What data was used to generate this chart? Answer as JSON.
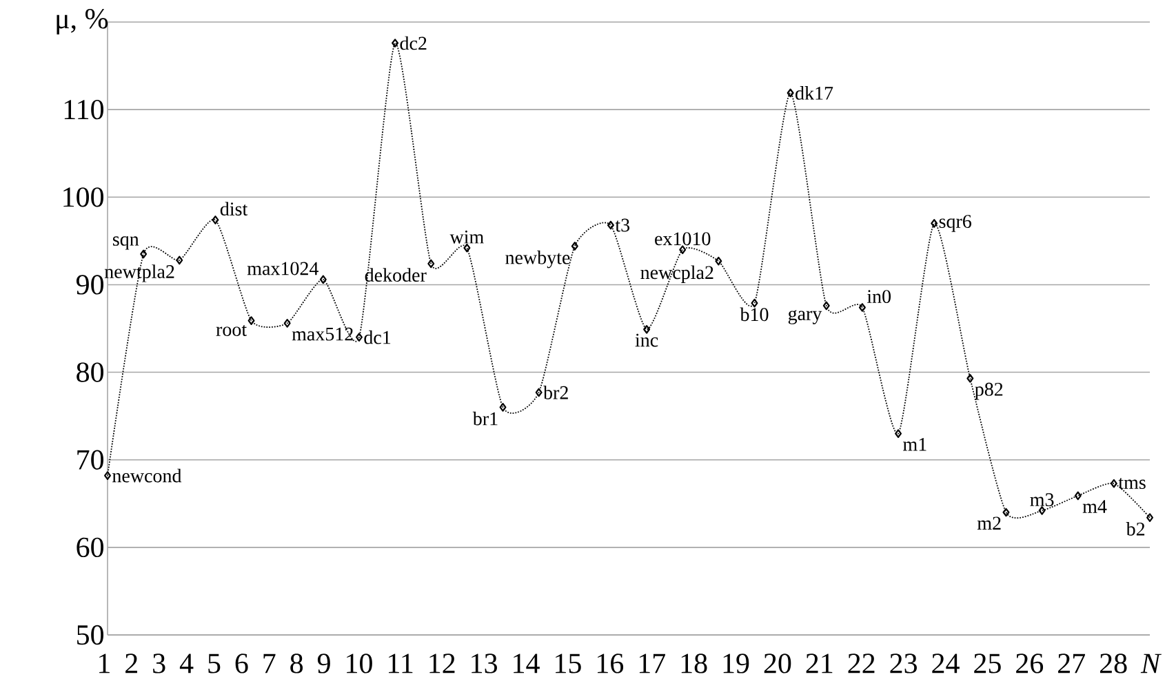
{
  "chart_data": {
    "type": "line",
    "ylabel": "μ, %",
    "xlabel": "1 2 3 4 5 6 7 8 9 10 11 12 13 14 15 16 17 18 19 20 21 22 23 24 25 26 27 28 *N*",
    "categories": [
      null,
      null,
      null,
      null,
      null,
      null,
      null,
      null,
      null,
      null,
      null,
      null,
      null,
      null,
      null,
      null,
      null,
      null,
      null,
      null,
      null,
      null,
      null,
      null,
      null,
      null,
      null,
      null,
      null,
      null
    ],
    "series": [
      {
        "color": "#000000",
        "values": [
          68.2,
          93.5,
          92.8,
          97.4,
          85.9,
          85.6,
          90.6,
          84.0,
          117.6,
          92.4,
          94.2,
          76.0,
          77.7,
          94.4,
          96.8,
          84.9,
          94.0,
          92.7,
          87.9,
          111.9,
          87.6,
          87.4,
          73.0,
          97.0,
          79.3,
          64.0,
          64.2,
          65.9,
          67.3,
          63.4
        ]
      }
    ],
    "annotations": [
      "newcond",
      "sqn",
      "newtpla2",
      "dist",
      "root",
      "max512",
      "max1024",
      "dc1",
      "dc2",
      "dekoder",
      "wim",
      "br1",
      "br2",
      "newbyte",
      "t3",
      "inc",
      "ex1010",
      "newcpla2",
      "b10",
      "dk17",
      "gary",
      "in0",
      "m1",
      "sqr6",
      "p82",
      "m2",
      "m3",
      "m4",
      "tms",
      "b2"
    ],
    "ylim": [
      50,
      120
    ],
    "yticks": [
      50,
      60,
      70,
      80,
      90,
      100,
      110,
      {
        "value": 120,
        "label": null
      }
    ],
    "grid": "y",
    "marker": "diamond",
    "line_style": "dotted"
  }
}
